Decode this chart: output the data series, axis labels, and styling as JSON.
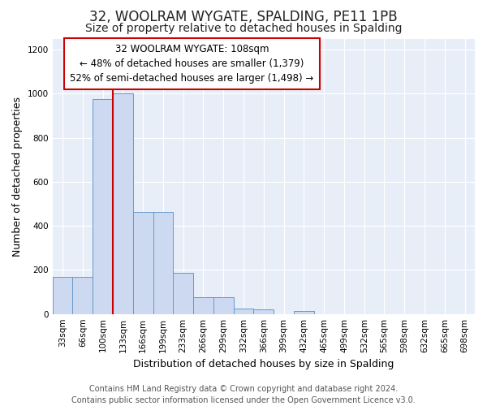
{
  "title": "32, WOOLRAM WYGATE, SPALDING, PE11 1PB",
  "subtitle": "Size of property relative to detached houses in Spalding",
  "xlabel": "Distribution of detached houses by size in Spalding",
  "ylabel": "Number of detached properties",
  "footer_line1": "Contains HM Land Registry data © Crown copyright and database right 2024.",
  "footer_line2": "Contains public sector information licensed under the Open Government Licence v3.0.",
  "annotation_line1": "32 WOOLRAM WYGATE: 108sqm",
  "annotation_line2": "← 48% of detached houses are smaller (1,379)",
  "annotation_line3": "52% of semi-detached houses are larger (1,498) →",
  "bar_labels": [
    "33sqm",
    "66sqm",
    "100sqm",
    "133sqm",
    "166sqm",
    "199sqm",
    "233sqm",
    "266sqm",
    "299sqm",
    "332sqm",
    "366sqm",
    "399sqm",
    "432sqm",
    "465sqm",
    "499sqm",
    "532sqm",
    "565sqm",
    "598sqm",
    "632sqm",
    "665sqm",
    "698sqm"
  ],
  "bar_values": [
    170,
    170,
    975,
    1000,
    465,
    465,
    185,
    75,
    75,
    25,
    20,
    0,
    15,
    0,
    0,
    0,
    0,
    0,
    0,
    0,
    0
  ],
  "bar_color": "#ccd9f0",
  "bar_edge_color": "#6699cc",
  "red_line_x": 2,
  "ylim": [
    0,
    1250
  ],
  "yticks": [
    0,
    200,
    400,
    600,
    800,
    1000,
    1200
  ],
  "fig_background": "#ffffff",
  "axes_background": "#e8eef8",
  "grid_color": "#ffffff",
  "annotation_box_bg": "#ffffff",
  "annotation_box_edge": "#cc0000",
  "red_line_color": "#cc0000",
  "title_fontsize": 12,
  "subtitle_fontsize": 10,
  "axis_label_fontsize": 9,
  "tick_fontsize": 7.5,
  "footer_fontsize": 7,
  "annotation_fontsize": 8.5
}
